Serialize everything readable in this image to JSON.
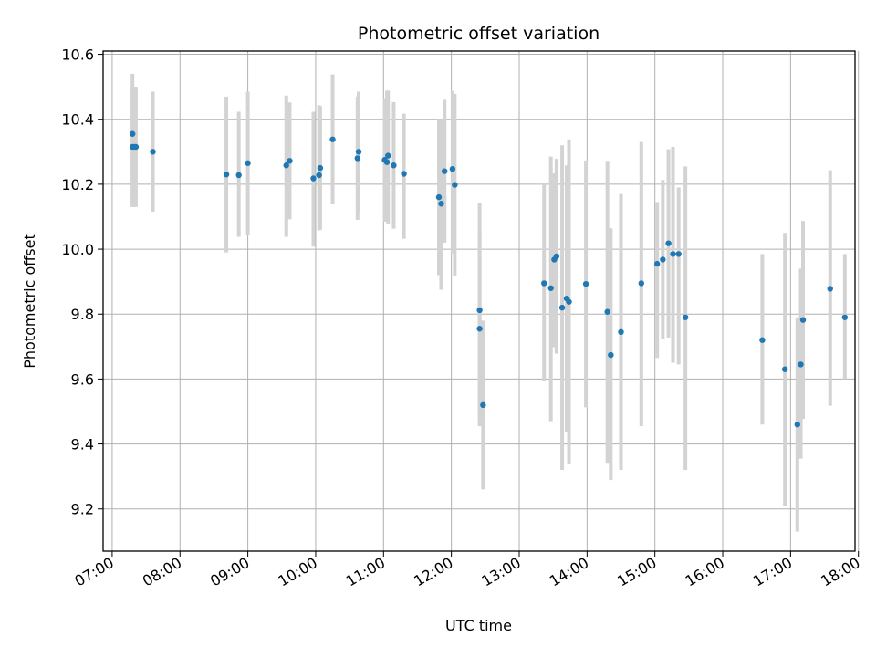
{
  "chart_data": {
    "type": "scatter",
    "title": "Photometric offset variation",
    "xlabel": "UTC time",
    "ylabel": "Photometric offset",
    "x_is_time": true,
    "xlim": [
      "06:52",
      "17:57"
    ],
    "ylim": [
      9.07,
      10.61
    ],
    "x_ticks": [
      "07:00",
      "08:00",
      "09:00",
      "10:00",
      "11:00",
      "12:00",
      "13:00",
      "14:00",
      "15:00",
      "16:00",
      "17:00",
      "18:00"
    ],
    "y_ticks": [
      "9.2",
      "9.4",
      "9.6",
      "9.8",
      "10.0",
      "10.2",
      "10.4",
      "10.6"
    ],
    "grid": true,
    "point_color": "#1f77b4",
    "errorbar_color": "#d3d3d3",
    "x": [
      "07:18",
      "07:18",
      "07:20",
      "07:21",
      "07:36",
      "08:41",
      "08:52",
      "09:00",
      "09:34",
      "09:37",
      "09:58",
      "10:03",
      "10:04",
      "10:15",
      "10:37",
      "10:38",
      "11:01",
      "11:03",
      "11:04",
      "11:09",
      "11:18",
      "11:49",
      "11:51",
      "11:54",
      "12:01",
      "12:03",
      "12:25",
      "12:25",
      "12:28",
      "13:22",
      "13:28",
      "13:31",
      "13:33",
      "13:38",
      "13:42",
      "13:44",
      "13:59",
      "14:18",
      "14:21",
      "14:30",
      "14:48",
      "15:02",
      "15:07",
      "15:12",
      "15:16",
      "15:21",
      "15:27",
      "16:35",
      "16:55",
      "17:06",
      "17:09",
      "17:11",
      "17:35",
      "17:48"
    ],
    "y": [
      10.355,
      10.315,
      10.315,
      10.315,
      10.3,
      10.23,
      10.228,
      10.265,
      10.258,
      10.272,
      10.218,
      10.228,
      10.25,
      10.338,
      10.28,
      10.3,
      10.275,
      10.268,
      10.288,
      10.258,
      10.232,
      10.16,
      10.14,
      10.24,
      10.247,
      10.198,
      9.812,
      9.755,
      9.52,
      9.895,
      9.88,
      9.968,
      9.978,
      9.82,
      9.848,
      9.838,
      9.893,
      9.807,
      9.674,
      9.745,
      9.895,
      9.955,
      9.968,
      10.018,
      9.985,
      9.985,
      9.79,
      9.72,
      9.63,
      9.46,
      9.645,
      9.782,
      9.878,
      9.79
    ],
    "yerr_low": [
      0.225,
      0.185,
      0.185,
      0.185,
      0.185,
      0.24,
      0.19,
      0.22,
      0.22,
      0.18,
      0.21,
      0.17,
      0.19,
      0.2,
      0.19,
      0.185,
      0.19,
      0.18,
      0.21,
      0.195,
      0.2,
      0.24,
      0.265,
      0.22,
      0.26,
      0.28,
      0.325,
      0.3,
      0.26,
      0.3,
      0.41,
      0.27,
      0.3,
      0.5,
      0.41,
      0.5,
      0.38,
      0.465,
      0.385,
      0.425,
      0.44,
      0.29,
      0.245,
      0.29,
      0.335,
      0.34,
      0.47,
      0.26,
      0.42,
      0.33,
      0.29,
      0.305,
      0.36,
      0.19
    ],
    "yerr_high": [
      0.185,
      0.185,
      0.185,
      0.185,
      0.185,
      0.24,
      0.195,
      0.22,
      0.215,
      0.18,
      0.205,
      0.215,
      0.19,
      0.2,
      0.19,
      0.185,
      0.19,
      0.22,
      0.2,
      0.195,
      0.185,
      0.24,
      0.26,
      0.22,
      0.24,
      0.28,
      0.33,
      0.3,
      0.26,
      0.305,
      0.405,
      0.265,
      0.3,
      0.5,
      0.41,
      0.5,
      0.38,
      0.465,
      0.39,
      0.425,
      0.435,
      0.19,
      0.245,
      0.29,
      0.33,
      0.205,
      0.465,
      0.265,
      0.42,
      0.33,
      0.295,
      0.305,
      0.365,
      0.195
    ]
  }
}
